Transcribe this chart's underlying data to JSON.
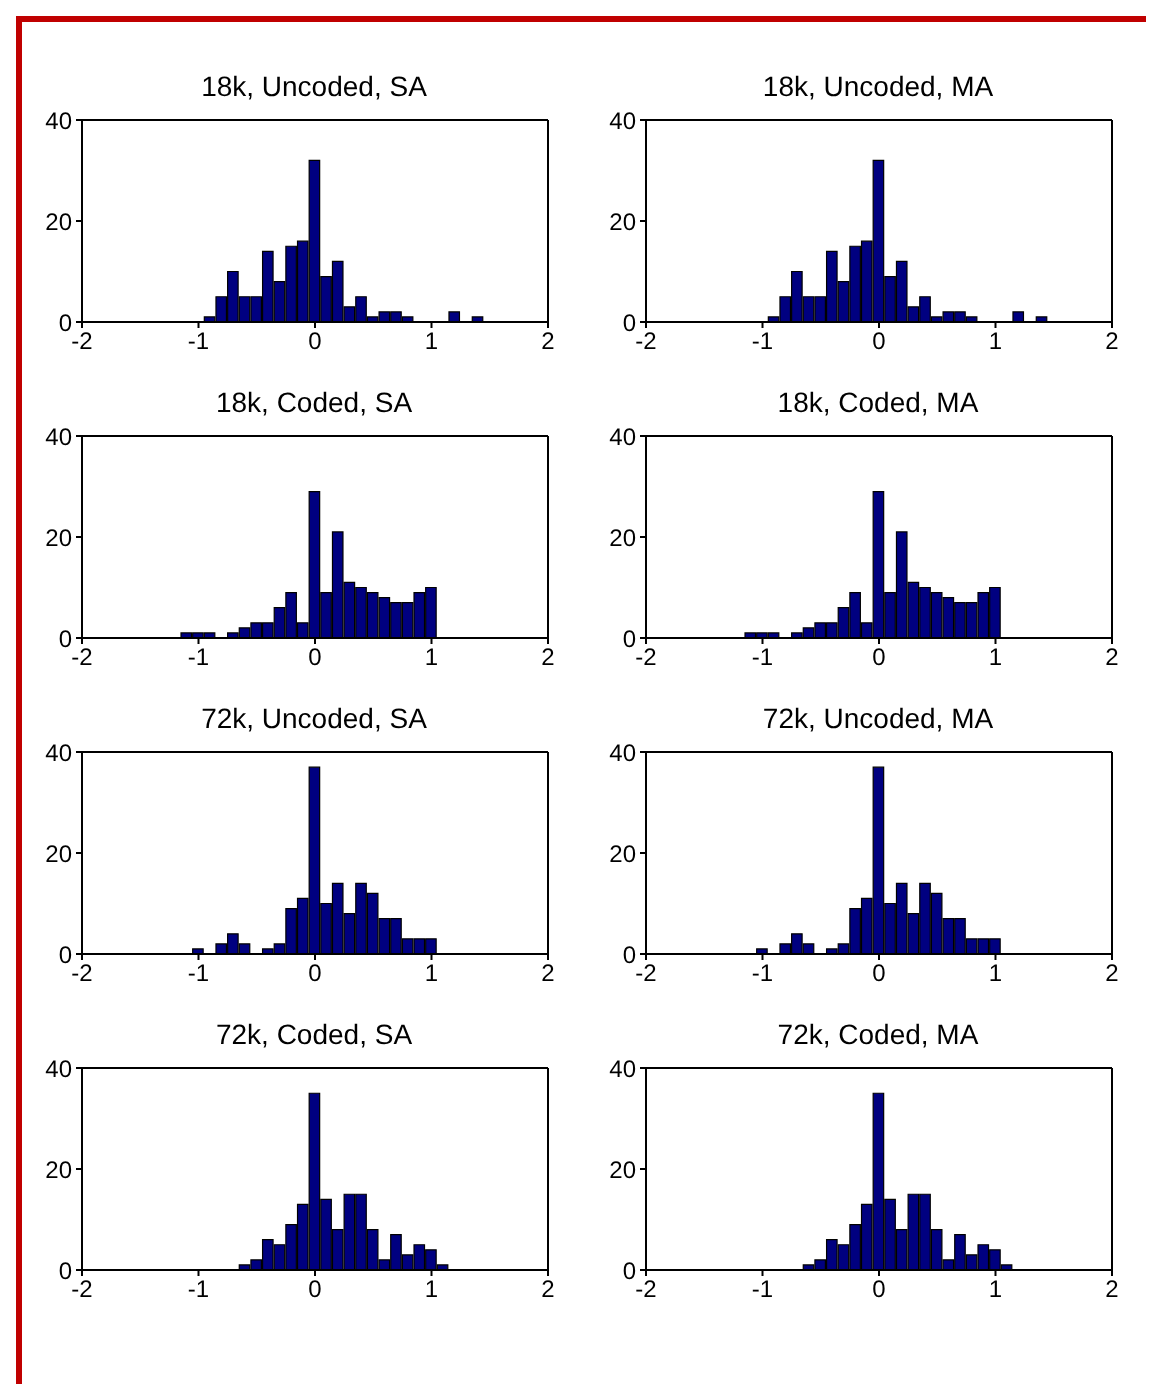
{
  "chart_data": [
    {
      "type": "histogram",
      "title": "18k, Uncoded, SA",
      "bins": [
        -0.95,
        -0.85,
        -0.75,
        -0.65,
        -0.55,
        -0.45,
        -0.35,
        -0.25,
        -0.15,
        -0.05,
        0.05,
        0.15,
        0.25,
        0.35,
        0.45,
        0.55,
        0.65,
        0.75,
        0.85,
        0.95,
        1.05,
        1.15,
        1.25,
        1.35,
        1.45
      ],
      "values": [
        1,
        5,
        10,
        5,
        5,
        14,
        8,
        15,
        16,
        32,
        9,
        12,
        3,
        5,
        1,
        2,
        2,
        1,
        0,
        0,
        0,
        2,
        0,
        1
      ],
      "color": "#000080",
      "xlim": [
        -2,
        2
      ],
      "xticks": [
        -2,
        -1,
        0,
        1,
        2
      ],
      "ylim": [
        0,
        40
      ],
      "yticks": [
        0,
        20,
        40
      ]
    },
    {
      "type": "histogram",
      "title": "18k, Uncoded, MA",
      "bins": [
        -0.95,
        -0.85,
        -0.75,
        -0.65,
        -0.55,
        -0.45,
        -0.35,
        -0.25,
        -0.15,
        -0.05,
        0.05,
        0.15,
        0.25,
        0.35,
        0.45,
        0.55,
        0.65,
        0.75,
        0.85,
        0.95,
        1.05,
        1.15,
        1.25,
        1.35,
        1.45
      ],
      "values": [
        1,
        5,
        10,
        5,
        5,
        14,
        8,
        15,
        16,
        32,
        9,
        12,
        3,
        5,
        1,
        2,
        2,
        1,
        0,
        0,
        0,
        2,
        0,
        1
      ],
      "color": "#000080",
      "xlim": [
        -2,
        2
      ],
      "xticks": [
        -2,
        -1,
        0,
        1,
        2
      ],
      "ylim": [
        0,
        40
      ],
      "yticks": [
        0,
        20,
        40
      ]
    },
    {
      "type": "histogram",
      "title": "18k, Coded, SA",
      "bins": [
        -1.15,
        -1.05,
        -0.95,
        -0.85,
        -0.75,
        -0.65,
        -0.55,
        -0.45,
        -0.35,
        -0.25,
        -0.15,
        -0.05,
        0.05,
        0.15,
        0.25,
        0.35,
        0.45,
        0.55,
        0.65,
        0.75,
        0.85,
        0.95,
        1.05
      ],
      "values": [
        1,
        1,
        1,
        0,
        1,
        2,
        3,
        3,
        6,
        9,
        3,
        29,
        9,
        21,
        11,
        10,
        9,
        8,
        7,
        7,
        9,
        10
      ],
      "color": "#000080",
      "xlim": [
        -2,
        2
      ],
      "xticks": [
        -2,
        -1,
        0,
        1,
        2
      ],
      "ylim": [
        0,
        40
      ],
      "yticks": [
        0,
        20,
        40
      ]
    },
    {
      "type": "histogram",
      "title": "18k, Coded, MA",
      "bins": [
        -1.15,
        -1.05,
        -0.95,
        -0.85,
        -0.75,
        -0.65,
        -0.55,
        -0.45,
        -0.35,
        -0.25,
        -0.15,
        -0.05,
        0.05,
        0.15,
        0.25,
        0.35,
        0.45,
        0.55,
        0.65,
        0.75,
        0.85,
        0.95,
        1.05
      ],
      "values": [
        1,
        1,
        1,
        0,
        1,
        2,
        3,
        3,
        6,
        9,
        3,
        29,
        9,
        21,
        11,
        10,
        9,
        8,
        7,
        7,
        9,
        10
      ],
      "color": "#000080",
      "xlim": [
        -2,
        2
      ],
      "xticks": [
        -2,
        -1,
        0,
        1,
        2
      ],
      "ylim": [
        0,
        40
      ],
      "yticks": [
        0,
        20,
        40
      ]
    },
    {
      "type": "histogram",
      "title": "72k, Uncoded, SA",
      "bins": [
        -1.05,
        -0.95,
        -0.85,
        -0.75,
        -0.65,
        -0.55,
        -0.45,
        -0.35,
        -0.25,
        -0.15,
        -0.05,
        0.05,
        0.15,
        0.25,
        0.35,
        0.45,
        0.55,
        0.65,
        0.75,
        0.85,
        0.95,
        1.05
      ],
      "values": [
        1,
        0,
        2,
        4,
        2,
        0,
        1,
        2,
        9,
        11,
        37,
        10,
        14,
        8,
        14,
        12,
        7,
        7,
        3,
        3,
        3
      ],
      "color": "#000080",
      "xlim": [
        -2,
        2
      ],
      "xticks": [
        -2,
        -1,
        0,
        1,
        2
      ],
      "ylim": [
        0,
        40
      ],
      "yticks": [
        0,
        20,
        40
      ]
    },
    {
      "type": "histogram",
      "title": "72k, Uncoded, MA",
      "bins": [
        -1.05,
        -0.95,
        -0.85,
        -0.75,
        -0.65,
        -0.55,
        -0.45,
        -0.35,
        -0.25,
        -0.15,
        -0.05,
        0.05,
        0.15,
        0.25,
        0.35,
        0.45,
        0.55,
        0.65,
        0.75,
        0.85,
        0.95,
        1.05
      ],
      "values": [
        1,
        0,
        2,
        4,
        2,
        0,
        1,
        2,
        9,
        11,
        37,
        10,
        14,
        8,
        14,
        12,
        7,
        7,
        3,
        3,
        3
      ],
      "color": "#000080",
      "xlim": [
        -2,
        2
      ],
      "xticks": [
        -2,
        -1,
        0,
        1,
        2
      ],
      "ylim": [
        0,
        40
      ],
      "yticks": [
        0,
        20,
        40
      ]
    },
    {
      "type": "histogram",
      "title": "72k, Coded, SA",
      "bins": [
        -0.65,
        -0.55,
        -0.45,
        -0.35,
        -0.25,
        -0.15,
        -0.05,
        0.05,
        0.15,
        0.25,
        0.35,
        0.45,
        0.55,
        0.65,
        0.75,
        0.85,
        0.95,
        1.05,
        1.15
      ],
      "values": [
        1,
        2,
        6,
        5,
        9,
        13,
        35,
        14,
        8,
        15,
        15,
        8,
        2,
        7,
        3,
        5,
        4,
        1
      ],
      "color": "#000080",
      "xlim": [
        -2,
        2
      ],
      "xticks": [
        -2,
        -1,
        0,
        1,
        2
      ],
      "ylim": [
        0,
        40
      ],
      "yticks": [
        0,
        20,
        40
      ]
    },
    {
      "type": "histogram",
      "title": "72k, Coded, MA",
      "bins": [
        -0.65,
        -0.55,
        -0.45,
        -0.35,
        -0.25,
        -0.15,
        -0.05,
        0.05,
        0.15,
        0.25,
        0.35,
        0.45,
        0.55,
        0.65,
        0.75,
        0.85,
        0.95,
        1.05,
        1.15
      ],
      "values": [
        1,
        2,
        6,
        5,
        9,
        13,
        35,
        14,
        8,
        15,
        15,
        8,
        2,
        7,
        3,
        5,
        4,
        1
      ],
      "color": "#000080",
      "xlim": [
        -2,
        2
      ],
      "xticks": [
        -2,
        -1,
        0,
        1,
        2
      ],
      "ylim": [
        0,
        40
      ],
      "yticks": [
        0,
        20,
        40
      ]
    }
  ]
}
